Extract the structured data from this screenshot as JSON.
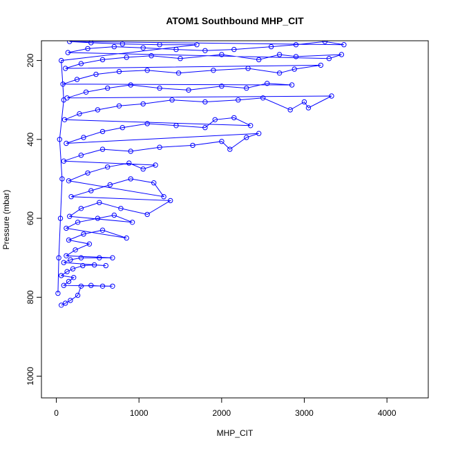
{
  "chart_data": {
    "type": "scatter",
    "title": "ATOM1 Southbound MHP_CIT",
    "xlabel": "MHP_CIT",
    "ylabel": "Pressure (mbar)",
    "xlim": [
      -180,
      4500
    ],
    "ylim": [
      1055,
      150
    ],
    "y_reversed": true,
    "grid": false,
    "marker": "open-circle",
    "connected": true,
    "series_color": "#0000ff",
    "x_ticks": [
      0,
      1000,
      2000,
      3000,
      4000
    ],
    "y_ticks": [
      200,
      400,
      600,
      800,
      1000
    ],
    "series": [
      {
        "points": [
          [
            60,
            820
          ],
          [
            110,
            815
          ],
          [
            170,
            808
          ],
          [
            260,
            795
          ],
          [
            300,
            772
          ],
          [
            420,
            770
          ],
          [
            560,
            772
          ],
          [
            680,
            772
          ],
          [
            90,
            770
          ],
          [
            150,
            760
          ],
          [
            210,
            750
          ],
          [
            60,
            745
          ],
          [
            130,
            735
          ],
          [
            200,
            728
          ],
          [
            320,
            720
          ],
          [
            460,
            718
          ],
          [
            600,
            720
          ],
          [
            90,
            712
          ],
          [
            170,
            705
          ],
          [
            300,
            700
          ],
          [
            520,
            700
          ],
          [
            680,
            700
          ],
          [
            120,
            695
          ],
          [
            230,
            680
          ],
          [
            400,
            665
          ],
          [
            150,
            655
          ],
          [
            330,
            640
          ],
          [
            560,
            630
          ],
          [
            850,
            650
          ],
          [
            120,
            625
          ],
          [
            260,
            610
          ],
          [
            500,
            600
          ],
          [
            700,
            592
          ],
          [
            920,
            610
          ],
          [
            160,
            595
          ],
          [
            300,
            575
          ],
          [
            520,
            560
          ],
          [
            780,
            575
          ],
          [
            1100,
            590
          ],
          [
            1380,
            555
          ],
          [
            180,
            545
          ],
          [
            420,
            530
          ],
          [
            650,
            515
          ],
          [
            900,
            500
          ],
          [
            1180,
            510
          ],
          [
            1300,
            545
          ],
          [
            150,
            505
          ],
          [
            380,
            485
          ],
          [
            620,
            470
          ],
          [
            880,
            460
          ],
          [
            1050,
            475
          ],
          [
            1200,
            465
          ],
          [
            90,
            455
          ],
          [
            300,
            440
          ],
          [
            560,
            425
          ],
          [
            900,
            430
          ],
          [
            1250,
            420
          ],
          [
            1650,
            415
          ],
          [
            2000,
            405
          ],
          [
            2100,
            425
          ],
          [
            2300,
            395
          ],
          [
            2450,
            385
          ],
          [
            120,
            410
          ],
          [
            330,
            395
          ],
          [
            560,
            380
          ],
          [
            800,
            370
          ],
          [
            1100,
            360
          ],
          [
            1450,
            365
          ],
          [
            1800,
            370
          ],
          [
            1920,
            350
          ],
          [
            2150,
            345
          ],
          [
            2350,
            365
          ],
          [
            100,
            350
          ],
          [
            280,
            335
          ],
          [
            500,
            325
          ],
          [
            760,
            315
          ],
          [
            1050,
            310
          ],
          [
            1400,
            300
          ],
          [
            1800,
            305
          ],
          [
            2200,
            300
          ],
          [
            2500,
            295
          ],
          [
            2830,
            325
          ],
          [
            3000,
            305
          ],
          [
            3050,
            320
          ],
          [
            3330,
            290
          ],
          [
            130,
            295
          ],
          [
            360,
            280
          ],
          [
            620,
            270
          ],
          [
            900,
            262
          ],
          [
            1250,
            270
          ],
          [
            1600,
            275
          ],
          [
            2000,
            265
          ],
          [
            2300,
            270
          ],
          [
            2550,
            258
          ],
          [
            2850,
            262
          ],
          [
            80,
            260
          ],
          [
            250,
            248
          ],
          [
            480,
            235
          ],
          [
            760,
            228
          ],
          [
            1100,
            225
          ],
          [
            1480,
            232
          ],
          [
            1900,
            225
          ],
          [
            2320,
            220
          ],
          [
            2700,
            232
          ],
          [
            2880,
            222
          ],
          [
            3200,
            212
          ],
          [
            110,
            220
          ],
          [
            300,
            208
          ],
          [
            560,
            198
          ],
          [
            850,
            192
          ],
          [
            1150,
            188
          ],
          [
            1500,
            195
          ],
          [
            2000,
            185
          ],
          [
            2450,
            198
          ],
          [
            2700,
            185
          ],
          [
            2900,
            190
          ],
          [
            3450,
            185
          ],
          [
            3300,
            195
          ],
          [
            140,
            180
          ],
          [
            380,
            170
          ],
          [
            700,
            165
          ],
          [
            1050,
            168
          ],
          [
            1450,
            172
          ],
          [
            1800,
            175
          ],
          [
            2150,
            172
          ],
          [
            2600,
            165
          ],
          [
            2900,
            160
          ],
          [
            3250,
            152
          ],
          [
            3480,
            160
          ],
          [
            160,
            152
          ],
          [
            420,
            155
          ],
          [
            800,
            158
          ],
          [
            1250,
            160
          ],
          [
            1700,
            160
          ],
          [
            60,
            200
          ],
          [
            90,
            300
          ],
          [
            40,
            400
          ],
          [
            70,
            500
          ],
          [
            50,
            600
          ],
          [
            30,
            700
          ],
          [
            20,
            790
          ]
        ]
      }
    ]
  }
}
